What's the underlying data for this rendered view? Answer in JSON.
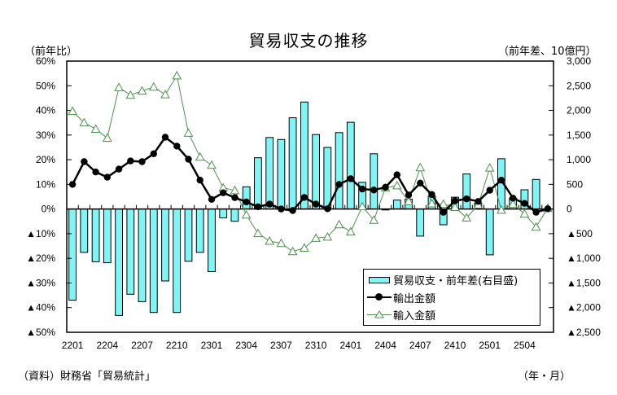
{
  "chart_data": {
    "type": "bar+line",
    "title": "貿易収支の推移",
    "left_axis_label": "（前年比）",
    "right_axis_label": "（前年差、10億円）",
    "xlabel": "（年・月）",
    "source": "（資料）財務省「貿易統計」",
    "left_ylim": [
      -50,
      60
    ],
    "right_ylim": [
      -2500,
      3000
    ],
    "left_ticks": [
      "60%",
      "50%",
      "40%",
      "30%",
      "20%",
      "10%",
      "0%",
      "▲10%",
      "▲20%",
      "▲30%",
      "▲40%",
      "▲50%"
    ],
    "right_ticks": [
      "3,000",
      "2,500",
      "2,000",
      "1,500",
      "1,000",
      "500",
      "0",
      "▲500",
      "▲1,000",
      "▲1,500",
      "▲2,000",
      "▲2,500"
    ],
    "x_tick_labels": [
      "2201",
      "2204",
      "2207",
      "2210",
      "2301",
      "2304",
      "2307",
      "2310",
      "2401",
      "2404",
      "2407",
      "2410",
      "2501",
      "2504"
    ],
    "categories": [
      "2201",
      "2202",
      "2203",
      "2204",
      "2205",
      "2206",
      "2207",
      "2208",
      "2209",
      "2210",
      "2211",
      "2212",
      "2301",
      "2302",
      "2303",
      "2304",
      "2305",
      "2306",
      "2307",
      "2308",
      "2309",
      "2310",
      "2311",
      "2312",
      "2401",
      "2402",
      "2403",
      "2404",
      "2405",
      "2406",
      "2407",
      "2408",
      "2409",
      "2410",
      "2411",
      "2412",
      "2501",
      "2502",
      "2503",
      "2504",
      "2505",
      "2506"
    ],
    "series": [
      {
        "name": "貿易収支・前年差(右目盛)",
        "type": "bar",
        "axis": "right",
        "color": "#7ff5f5",
        "values": [
          -1850,
          -880,
          -1070,
          -1090,
          -2160,
          -1730,
          -1880,
          -2100,
          -1460,
          -2100,
          -1060,
          -880,
          -1270,
          -180,
          -250,
          450,
          1040,
          1450,
          1410,
          1850,
          2170,
          1510,
          1250,
          1550,
          1760,
          540,
          1120,
          -20,
          180,
          200,
          -550,
          260,
          -320,
          240,
          710,
          120,
          -930,
          1020,
          220,
          390,
          600,
          0
        ]
      },
      {
        "name": "輸出金額",
        "type": "line",
        "axis": "left",
        "color": "#000000",
        "marker": "circle",
        "values": [
          10.0,
          19.2,
          15.0,
          12.9,
          16.2,
          19.5,
          19.2,
          22.4,
          29.1,
          25.5,
          20.2,
          11.7,
          3.9,
          6.6,
          4.6,
          2.9,
          0.9,
          2.0,
          0.0,
          -0.6,
          4.7,
          2.0,
          0.1,
          10.0,
          12.3,
          8.1,
          7.7,
          8.8,
          13.9,
          5.7,
          10.5,
          5.9,
          -1.3,
          3.3,
          4.1,
          3.1,
          7.6,
          11.7,
          4.4,
          2.3,
          -1.3,
          0.1
        ]
      },
      {
        "name": "輸入金額",
        "type": "line",
        "axis": "left",
        "color": "#4f8f4f",
        "marker": "open-triangle",
        "values": [
          39.7,
          35.0,
          32.4,
          28.8,
          49.3,
          46.2,
          47.9,
          49.5,
          46.4,
          54.1,
          30.8,
          21.1,
          17.8,
          8.6,
          7.5,
          -2.4,
          -9.9,
          -13.0,
          -13.9,
          -17.2,
          -15.8,
          -11.8,
          -11.3,
          -6.3,
          -9.2,
          1.0,
          -4.5,
          8.6,
          9.5,
          3.1,
          16.8,
          2.2,
          2.0,
          0.7,
          -3.6,
          1.7,
          16.7,
          -0.4,
          2.0,
          -2.0,
          -7.3,
          0.3
        ]
      }
    ],
    "legend": {
      "placement": "bottom-right",
      "entries": [
        "貿易収支・前年差(右目盛)",
        "輸出金額",
        "輸入金額"
      ]
    },
    "grid": false
  }
}
